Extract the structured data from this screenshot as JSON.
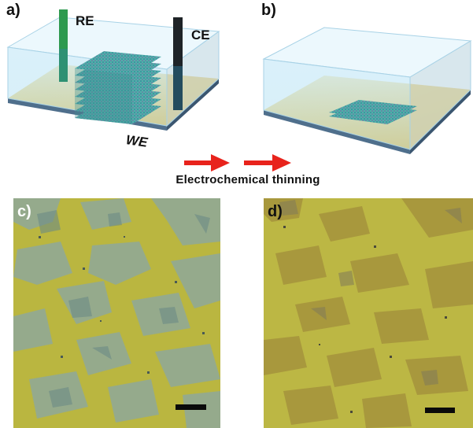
{
  "panels": {
    "a": "a)",
    "b": "b)",
    "c": "c)",
    "d": "d)"
  },
  "electrodes": {
    "reference": "RE",
    "counter": "CE",
    "working": "WE"
  },
  "process_label": "Electrochemical thinning",
  "colors": {
    "substrate_gold": "#e9be3c",
    "electrolyte_blue": "#bfe4f3",
    "arrow_red": "#e8231c",
    "re_green": "#2e9a4f",
    "ce_black": "#1e2327",
    "flake_teal": "#4fb3a8",
    "flake_purple": "#7b5aa6",
    "micro_yellow": "#b9b33f"
  },
  "layers": {
    "initial_stack_count": 8,
    "thinned_stack_count": 2
  }
}
